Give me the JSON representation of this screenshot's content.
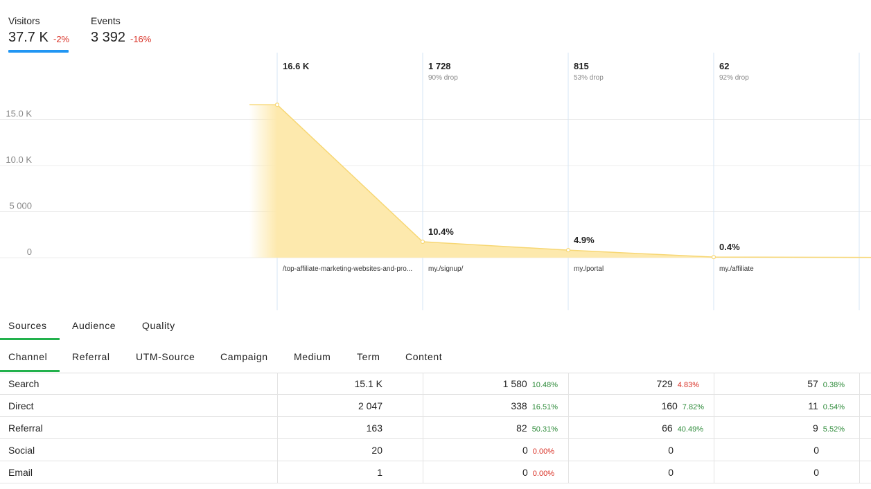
{
  "metrics": {
    "visitors": {
      "label": "Visitors",
      "value": "37.7 K",
      "delta": "-2%"
    },
    "events": {
      "label": "Events",
      "value": "3 392",
      "delta": "-16%"
    }
  },
  "funnel": {
    "y_ticks": [
      "15.0 K",
      "10.0 K",
      "5 000",
      "0"
    ],
    "steps": [
      {
        "count": "16.6 K",
        "drop": "",
        "conversion": "",
        "url": "/top-affiliate-marketing-websites-and-pro..."
      },
      {
        "count": "1 728",
        "drop": "90% drop",
        "conversion": "10.4%",
        "url": "my./signup/"
      },
      {
        "count": "815",
        "drop": "53% drop",
        "conversion": "4.9%",
        "url": "my./portal"
      },
      {
        "count": "62",
        "drop": "92% drop",
        "conversion": "0.4%",
        "url": "my./affiliate"
      }
    ]
  },
  "chart_data": {
    "type": "area",
    "categories": [
      "/top-affiliate-marketing-websites-and-pro...",
      "my./signup/",
      "my./portal",
      "my./affiliate"
    ],
    "values": [
      16600,
      1728,
      815,
      62
    ],
    "ylim": [
      0,
      15000
    ],
    "y_ticks": [
      0,
      5000,
      10000,
      15000
    ],
    "grid": true,
    "fill_color": "#fde9ad",
    "line_color": "#f7d774"
  },
  "tabs_main": [
    "Sources",
    "Audience",
    "Quality"
  ],
  "tabs_sub": [
    "Channel",
    "Referral",
    "UTM-Source",
    "Campaign",
    "Medium",
    "Term",
    "Content"
  ],
  "table": {
    "rows": [
      {
        "name": "Search",
        "c1": "15.1 K",
        "c2": "1 580",
        "p2": "10.48%",
        "c3": "729",
        "p3": "4.83%",
        "c4": "57",
        "p4": "0.38%"
      },
      {
        "name": "Direct",
        "c1": "2 047",
        "c2": "338",
        "p2": "16.51%",
        "c3": "160",
        "p3": "7.82%",
        "c4": "11",
        "p4": "0.54%"
      },
      {
        "name": "Referral",
        "c1": "163",
        "c2": "82",
        "p2": "50.31%",
        "c3": "66",
        "p3": "40.49%",
        "c4": "9",
        "p4": "5.52%"
      },
      {
        "name": "Social",
        "c1": "20",
        "c2": "0",
        "p2": "0.00%",
        "c3": "0",
        "p3": "",
        "c4": "0",
        "p4": ""
      },
      {
        "name": "Email",
        "c1": "1",
        "c2": "0",
        "p2": "0.00%",
        "c3": "0",
        "p3": "",
        "c4": "0",
        "p4": ""
      }
    ]
  },
  "colors": {
    "accent_blue": "#2196f3",
    "tab_green": "#22b14c",
    "negative_red": "#d93025",
    "positive_green": "#2e8b3a"
  }
}
